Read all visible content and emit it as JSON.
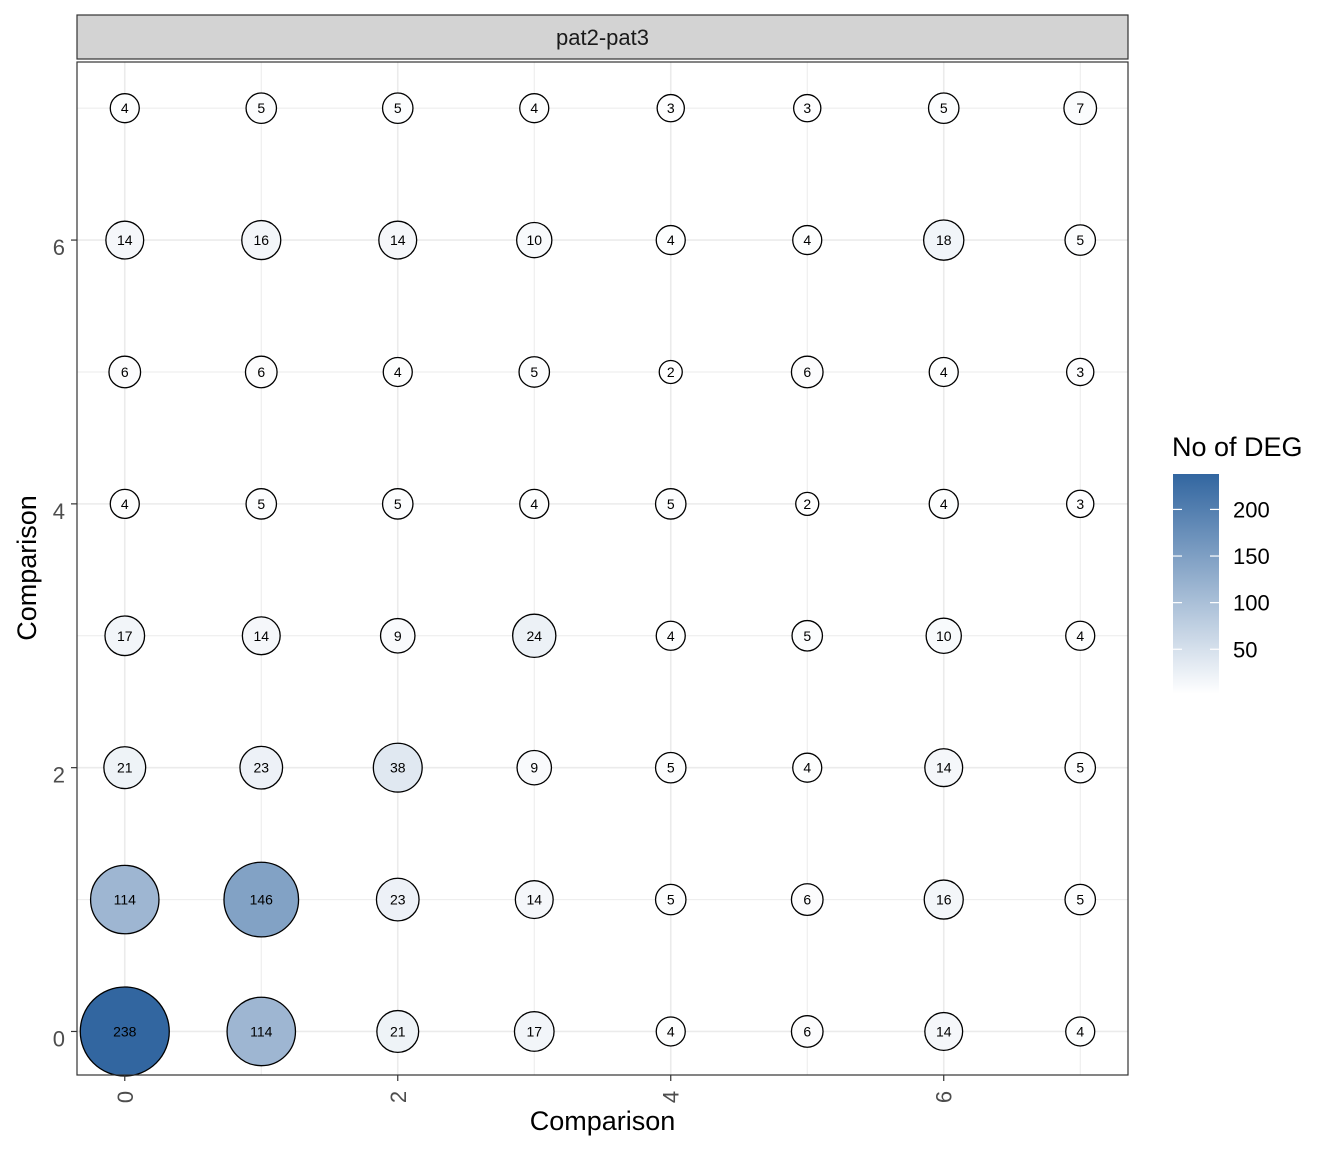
{
  "chart_data": {
    "type": "scatter",
    "facet_label": "pat2-pat3",
    "xlabel": "Comparison",
    "ylabel": "Comparison",
    "x_ticks": [
      0,
      2,
      4,
      6
    ],
    "y_ticks": [
      0,
      2,
      4,
      6
    ],
    "xlim": [
      -0.35,
      7.35
    ],
    "ylim": [
      -0.33,
      7.35
    ],
    "grid": true,
    "legend": {
      "title": "No of DEG",
      "ticks": [
        50,
        100,
        150,
        200
      ],
      "range": [
        2,
        238
      ],
      "placement": "right",
      "color_low": "#ffffff",
      "color_high": "#3266a0"
    },
    "points": [
      {
        "x": 0,
        "y": 7,
        "value": 4
      },
      {
        "x": 1,
        "y": 7,
        "value": 5
      },
      {
        "x": 2,
        "y": 7,
        "value": 5
      },
      {
        "x": 3,
        "y": 7,
        "value": 4
      },
      {
        "x": 4,
        "y": 7,
        "value": 3
      },
      {
        "x": 5,
        "y": 7,
        "value": 3
      },
      {
        "x": 6,
        "y": 7,
        "value": 5
      },
      {
        "x": 7,
        "y": 7,
        "value": 7
      },
      {
        "x": 0,
        "y": 6,
        "value": 14
      },
      {
        "x": 1,
        "y": 6,
        "value": 16
      },
      {
        "x": 2,
        "y": 6,
        "value": 14
      },
      {
        "x": 3,
        "y": 6,
        "value": 10
      },
      {
        "x": 4,
        "y": 6,
        "value": 4
      },
      {
        "x": 5,
        "y": 6,
        "value": 4
      },
      {
        "x": 6,
        "y": 6,
        "value": 18
      },
      {
        "x": 7,
        "y": 6,
        "value": 5
      },
      {
        "x": 0,
        "y": 5,
        "value": 6
      },
      {
        "x": 1,
        "y": 5,
        "value": 6
      },
      {
        "x": 2,
        "y": 5,
        "value": 4
      },
      {
        "x": 3,
        "y": 5,
        "value": 5
      },
      {
        "x": 4,
        "y": 5,
        "value": 2
      },
      {
        "x": 5,
        "y": 5,
        "value": 6
      },
      {
        "x": 6,
        "y": 5,
        "value": 4
      },
      {
        "x": 7,
        "y": 5,
        "value": 3
      },
      {
        "x": 0,
        "y": 4,
        "value": 4
      },
      {
        "x": 1,
        "y": 4,
        "value": 5
      },
      {
        "x": 2,
        "y": 4,
        "value": 5
      },
      {
        "x": 3,
        "y": 4,
        "value": 4
      },
      {
        "x": 4,
        "y": 4,
        "value": 5
      },
      {
        "x": 5,
        "y": 4,
        "value": 2
      },
      {
        "x": 6,
        "y": 4,
        "value": 4
      },
      {
        "x": 7,
        "y": 4,
        "value": 3
      },
      {
        "x": 0,
        "y": 3,
        "value": 17
      },
      {
        "x": 1,
        "y": 3,
        "value": 14
      },
      {
        "x": 2,
        "y": 3,
        "value": 9
      },
      {
        "x": 3,
        "y": 3,
        "value": 24
      },
      {
        "x": 4,
        "y": 3,
        "value": 4
      },
      {
        "x": 5,
        "y": 3,
        "value": 5
      },
      {
        "x": 6,
        "y": 3,
        "value": 10
      },
      {
        "x": 7,
        "y": 3,
        "value": 4
      },
      {
        "x": 0,
        "y": 2,
        "value": 21
      },
      {
        "x": 1,
        "y": 2,
        "value": 23
      },
      {
        "x": 2,
        "y": 2,
        "value": 38
      },
      {
        "x": 3,
        "y": 2,
        "value": 9
      },
      {
        "x": 4,
        "y": 2,
        "value": 5
      },
      {
        "x": 5,
        "y": 2,
        "value": 4
      },
      {
        "x": 6,
        "y": 2,
        "value": 14
      },
      {
        "x": 7,
        "y": 2,
        "value": 5
      },
      {
        "x": 0,
        "y": 1,
        "value": 114
      },
      {
        "x": 1,
        "y": 1,
        "value": 146
      },
      {
        "x": 2,
        "y": 1,
        "value": 23
      },
      {
        "x": 3,
        "y": 1,
        "value": 14
      },
      {
        "x": 4,
        "y": 1,
        "value": 5
      },
      {
        "x": 5,
        "y": 1,
        "value": 6
      },
      {
        "x": 6,
        "y": 1,
        "value": 16
      },
      {
        "x": 7,
        "y": 1,
        "value": 5
      },
      {
        "x": 0,
        "y": 0,
        "value": 238
      },
      {
        "x": 1,
        "y": 0,
        "value": 114
      },
      {
        "x": 2,
        "y": 0,
        "value": 21
      },
      {
        "x": 3,
        "y": 0,
        "value": 17
      },
      {
        "x": 4,
        "y": 0,
        "value": 4
      },
      {
        "x": 5,
        "y": 0,
        "value": 6
      },
      {
        "x": 6,
        "y": 0,
        "value": 14
      },
      {
        "x": 7,
        "y": 0,
        "value": 4
      }
    ]
  }
}
